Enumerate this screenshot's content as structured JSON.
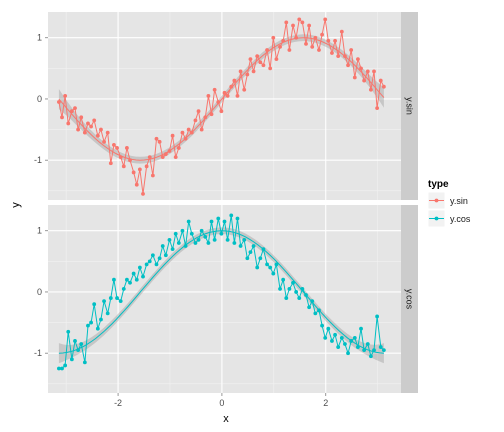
{
  "chart_data": {
    "type": "line",
    "xlabel": "x",
    "ylabel": "y",
    "xlim": [
      -3.35,
      3.45
    ],
    "ylim": [
      -1.65,
      1.42
    ],
    "x_ticks": [
      -2,
      0,
      2
    ],
    "y_ticks": [
      -1,
      0,
      1
    ],
    "grid": true,
    "legend": {
      "title": "type",
      "position": "right",
      "entries": [
        "y.sin",
        "y.cos"
      ]
    },
    "panels": [
      {
        "strip": "y.sin",
        "series": "y.sin",
        "color": "#F8766D",
        "trend": "sin",
        "x": [
          -3.14,
          -3.08,
          -3.02,
          -2.96,
          -2.89,
          -2.83,
          -2.77,
          -2.71,
          -2.64,
          -2.58,
          -2.52,
          -2.46,
          -2.39,
          -2.33,
          -2.27,
          -2.2,
          -2.14,
          -2.08,
          -2.02,
          -1.95,
          -1.89,
          -1.83,
          -1.77,
          -1.7,
          -1.64,
          -1.58,
          -1.52,
          -1.45,
          -1.39,
          -1.33,
          -1.26,
          -1.2,
          -1.14,
          -1.08,
          -1.01,
          -0.95,
          -0.89,
          -0.83,
          -0.76,
          -0.7,
          -0.64,
          -0.58,
          -0.51,
          -0.45,
          -0.39,
          -0.32,
          -0.26,
          -0.2,
          -0.14,
          -0.07,
          -0.01,
          0.05,
          0.11,
          0.18,
          0.24,
          0.3,
          0.36,
          0.43,
          0.49,
          0.55,
          0.61,
          0.68,
          0.74,
          0.8,
          0.87,
          0.93,
          0.99,
          1.05,
          1.12,
          1.18,
          1.24,
          1.3,
          1.37,
          1.43,
          1.49,
          1.55,
          1.62,
          1.68,
          1.74,
          1.8,
          1.87,
          1.93,
          1.99,
          2.05,
          2.12,
          2.18,
          2.24,
          2.31,
          2.37,
          2.43,
          2.49,
          2.56,
          2.62,
          2.68,
          2.74,
          2.81,
          2.87,
          2.93,
          2.99,
          3.06,
          3.12
        ],
        "y": [
          -0.05,
          -0.3,
          0.05,
          -0.4,
          -0.2,
          -0.15,
          -0.5,
          -0.3,
          -0.55,
          -0.4,
          -0.45,
          -0.35,
          -0.6,
          -0.5,
          -0.7,
          -0.55,
          -1.05,
          -0.75,
          -0.8,
          -0.95,
          -1.1,
          -0.8,
          -1.0,
          -1.2,
          -1.4,
          -1.15,
          -1.55,
          -1.1,
          -0.95,
          -1.25,
          -0.65,
          -0.7,
          -0.95,
          -0.9,
          -0.85,
          -0.6,
          -0.95,
          -0.8,
          -0.55,
          -0.65,
          -0.5,
          -0.55,
          -0.35,
          -0.2,
          -0.5,
          -0.3,
          0.05,
          -0.25,
          0.15,
          -0.05,
          -0.2,
          0.1,
          0.05,
          0.2,
          0.3,
          0.05,
          0.45,
          0.15,
          0.4,
          0.65,
          0.45,
          0.7,
          0.6,
          0.55,
          0.8,
          0.5,
          1.0,
          0.65,
          0.85,
          0.95,
          1.25,
          0.8,
          1.2,
          1.0,
          1.3,
          1.25,
          0.9,
          1.2,
          0.85,
          1.0,
          0.8,
          1.05,
          1.3,
          0.95,
          0.75,
          0.95,
          0.7,
          1.1,
          0.7,
          0.55,
          0.8,
          0.35,
          0.65,
          0.5,
          0.3,
          0.45,
          0.15,
          0.45,
          -0.15,
          0.3,
          0.2
        ]
      },
      {
        "strip": "y.cos",
        "series": "y.cos",
        "color": "#00BFC4",
        "trend": "cos",
        "x": [
          -3.14,
          -3.08,
          -3.02,
          -2.96,
          -2.89,
          -2.83,
          -2.77,
          -2.71,
          -2.64,
          -2.58,
          -2.52,
          -2.46,
          -2.39,
          -2.33,
          -2.27,
          -2.2,
          -2.14,
          -2.08,
          -2.02,
          -1.95,
          -1.89,
          -1.83,
          -1.77,
          -1.7,
          -1.64,
          -1.58,
          -1.52,
          -1.45,
          -1.39,
          -1.33,
          -1.26,
          -1.2,
          -1.14,
          -1.08,
          -1.01,
          -0.95,
          -0.89,
          -0.83,
          -0.76,
          -0.7,
          -0.64,
          -0.58,
          -0.51,
          -0.45,
          -0.39,
          -0.32,
          -0.26,
          -0.2,
          -0.14,
          -0.07,
          -0.01,
          0.05,
          0.11,
          0.18,
          0.24,
          0.3,
          0.36,
          0.43,
          0.49,
          0.55,
          0.61,
          0.68,
          0.74,
          0.8,
          0.87,
          0.93,
          0.99,
          1.05,
          1.12,
          1.18,
          1.24,
          1.3,
          1.37,
          1.43,
          1.49,
          1.55,
          1.62,
          1.68,
          1.74,
          1.8,
          1.87,
          1.93,
          1.99,
          2.05,
          2.12,
          2.18,
          2.24,
          2.31,
          2.37,
          2.43,
          2.49,
          2.56,
          2.62,
          2.68,
          2.74,
          2.81,
          2.87,
          2.93,
          2.99,
          3.06,
          3.12
        ],
        "y": [
          -1.25,
          -1.25,
          -1.2,
          -0.65,
          -1.1,
          -0.8,
          -0.95,
          -0.85,
          -1.15,
          -0.55,
          -0.5,
          -0.2,
          -0.6,
          -0.45,
          -0.15,
          -0.35,
          -0.1,
          0.2,
          -0.1,
          -0.15,
          0.05,
          0.2,
          0.15,
          0.3,
          0.2,
          0.4,
          0.25,
          0.45,
          0.5,
          0.6,
          0.45,
          0.55,
          0.75,
          0.6,
          0.85,
          0.7,
          0.95,
          0.8,
          1.0,
          0.75,
          1.15,
          0.95,
          0.8,
          0.85,
          1.0,
          0.9,
          0.8,
          1.15,
          0.85,
          1.2,
          0.95,
          1.15,
          0.85,
          1.25,
          0.8,
          1.2,
          0.75,
          0.85,
          0.55,
          0.65,
          0.75,
          0.4,
          0.55,
          0.7,
          0.45,
          0.4,
          0.3,
          0.45,
          0.05,
          0.2,
          -0.1,
          0.05,
          0.15,
          0.0,
          -0.1,
          0.05,
          -0.05,
          -0.25,
          -0.15,
          -0.35,
          -0.3,
          -0.55,
          -0.75,
          -0.6,
          -0.8,
          -0.7,
          -0.9,
          -0.75,
          -0.85,
          -1.0,
          -0.8,
          -0.75,
          -0.9,
          -0.6,
          -0.95,
          -0.85,
          -1.05,
          -0.95,
          -0.4,
          -0.9,
          -0.95
        ]
      }
    ]
  }
}
